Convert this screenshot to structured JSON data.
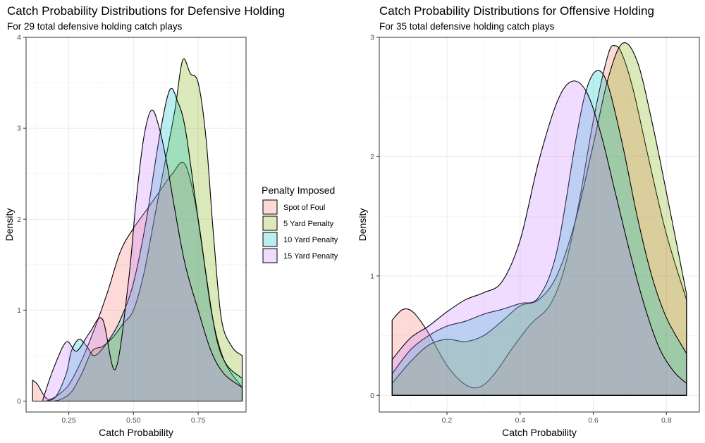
{
  "legend": {
    "title": "Penalty Imposed",
    "placement": "between-panels",
    "items": [
      {
        "label": "Spot of Foul",
        "color": "#F8766D"
      },
      {
        "label": "5 Yard Penalty",
        "color": "#7CAE00"
      },
      {
        "label": "10 Yard Penalty",
        "color": "#00BFC4"
      },
      {
        "label": "15 Yard Penalty",
        "color": "#C77CFF"
      }
    ]
  },
  "chart_data": [
    {
      "type": "area",
      "title": "Catch Probability Distributions for Defensive Holding",
      "subtitle": "For 29 total defensive holding catch plays",
      "xlabel": "Catch Probability",
      "ylabel": "Density",
      "xlim": [
        0.085,
        0.935
      ],
      "ylim": [
        -0.12,
        4.0
      ],
      "xticks": [
        0.25,
        0.5,
        0.75
      ],
      "xtick_labels": [
        "0.25",
        "0.50",
        "0.75"
      ],
      "yticks": [
        0,
        1,
        2,
        3,
        4
      ],
      "ytick_labels": [
        "0",
        "1",
        "2",
        "3",
        "4"
      ],
      "grid": true,
      "series": [
        {
          "name": "Spot of Foul",
          "color": "#F8766D",
          "x": [
            0.11,
            0.13,
            0.15,
            0.17,
            0.2,
            0.25,
            0.3,
            0.35,
            0.4,
            0.45,
            0.5,
            0.55,
            0.6,
            0.65,
            0.7,
            0.75,
            0.8,
            0.85,
            0.92
          ],
          "y": [
            0.23,
            0.18,
            0.08,
            0.02,
            0.05,
            0.18,
            0.45,
            0.8,
            1.2,
            1.65,
            1.9,
            2.1,
            2.3,
            2.5,
            2.6,
            2.0,
            1.0,
            0.45,
            0.15
          ]
        },
        {
          "name": "5 Yard Penalty",
          "color": "#7CAE00",
          "x": [
            0.19,
            0.22,
            0.26,
            0.3,
            0.34,
            0.38,
            0.42,
            0.46,
            0.5,
            0.54,
            0.58,
            0.62,
            0.66,
            0.69,
            0.72,
            0.75,
            0.78,
            0.81,
            0.84,
            0.88,
            0.92
          ],
          "y": [
            0.0,
            0.02,
            0.1,
            0.3,
            0.55,
            0.6,
            0.7,
            0.85,
            1.0,
            1.4,
            2.0,
            2.6,
            3.2,
            3.75,
            3.6,
            3.5,
            2.9,
            1.8,
            0.9,
            0.6,
            0.5
          ]
        },
        {
          "name": "10 Yard Penalty",
          "color": "#00BFC4",
          "x": [
            0.16,
            0.2,
            0.24,
            0.26,
            0.29,
            0.32,
            0.35,
            0.4,
            0.45,
            0.5,
            0.55,
            0.6,
            0.64,
            0.67,
            0.7,
            0.74,
            0.78,
            0.82,
            0.86,
            0.92
          ],
          "y": [
            0.0,
            0.05,
            0.3,
            0.55,
            0.68,
            0.6,
            0.5,
            0.65,
            0.9,
            1.3,
            2.0,
            2.9,
            3.42,
            3.3,
            3.0,
            2.2,
            1.4,
            0.7,
            0.4,
            0.25
          ]
        },
        {
          "name": "15 Yard Penalty",
          "color": "#C77CFF",
          "x": [
            0.15,
            0.19,
            0.24,
            0.28,
            0.33,
            0.38,
            0.43,
            0.48,
            0.51,
            0.54,
            0.57,
            0.6,
            0.63,
            0.66,
            0.7,
            0.75,
            0.8,
            0.85,
            0.92
          ],
          "y": [
            0.02,
            0.35,
            0.65,
            0.55,
            0.75,
            0.9,
            0.35,
            1.3,
            2.2,
            2.9,
            3.2,
            3.0,
            2.6,
            2.1,
            1.5,
            1.0,
            0.55,
            0.3,
            0.15
          ]
        }
      ]
    },
    {
      "type": "area",
      "title": "Catch Probability Distributions for Offensive Holding",
      "subtitle": "For 35 total defensive holding catch plays",
      "xlabel": "Catch Probability",
      "ylabel": "Density",
      "xlim": [
        0.015,
        0.89
      ],
      "ylim": [
        -0.14,
        3.0
      ],
      "xticks": [
        0.2,
        0.4,
        0.6,
        0.8
      ],
      "xtick_labels": [
        "0.2",
        "0.4",
        "0.6",
        "0.8"
      ],
      "yticks": [
        0,
        1,
        2,
        3
      ],
      "ytick_labels": [
        "0",
        "1",
        "2",
        "3"
      ],
      "grid": true,
      "series": [
        {
          "name": "Spot of Foul",
          "color": "#F8766D",
          "x": [
            0.05,
            0.08,
            0.11,
            0.15,
            0.2,
            0.25,
            0.29,
            0.33,
            0.38,
            0.43,
            0.48,
            0.52,
            0.56,
            0.6,
            0.64,
            0.66,
            0.68,
            0.71,
            0.75,
            0.8,
            0.855
          ],
          "y": [
            0.63,
            0.72,
            0.69,
            0.52,
            0.25,
            0.09,
            0.07,
            0.18,
            0.4,
            0.6,
            0.75,
            1.05,
            1.6,
            2.3,
            2.85,
            2.93,
            2.85,
            2.55,
            2.0,
            1.35,
            0.8
          ]
        },
        {
          "name": "5 Yard Penalty",
          "color": "#7CAE00",
          "x": [
            0.05,
            0.1,
            0.15,
            0.2,
            0.25,
            0.3,
            0.35,
            0.4,
            0.45,
            0.5,
            0.55,
            0.6,
            0.64,
            0.68,
            0.72,
            0.76,
            0.8,
            0.855
          ],
          "y": [
            0.1,
            0.28,
            0.42,
            0.47,
            0.45,
            0.5,
            0.62,
            0.75,
            0.8,
            1.0,
            1.45,
            2.1,
            2.65,
            2.95,
            2.8,
            2.3,
            1.7,
            0.85
          ]
        },
        {
          "name": "10 Yard Penalty",
          "color": "#00BFC4",
          "x": [
            0.05,
            0.1,
            0.15,
            0.2,
            0.25,
            0.3,
            0.35,
            0.4,
            0.45,
            0.5,
            0.55,
            0.58,
            0.61,
            0.64,
            0.68,
            0.72,
            0.76,
            0.8,
            0.855
          ],
          "y": [
            0.18,
            0.38,
            0.5,
            0.58,
            0.62,
            0.68,
            0.72,
            0.77,
            0.82,
            1.2,
            2.1,
            2.55,
            2.72,
            2.6,
            2.1,
            1.5,
            1.0,
            0.65,
            0.35
          ]
        },
        {
          "name": "15 Yard Penalty",
          "color": "#C77CFF",
          "x": [
            0.05,
            0.1,
            0.15,
            0.2,
            0.25,
            0.3,
            0.35,
            0.4,
            0.45,
            0.5,
            0.54,
            0.58,
            0.62,
            0.66,
            0.7,
            0.74,
            0.78,
            0.82,
            0.855
          ],
          "y": [
            0.3,
            0.48,
            0.58,
            0.7,
            0.8,
            0.86,
            0.95,
            1.3,
            1.95,
            2.45,
            2.63,
            2.55,
            2.2,
            1.7,
            1.2,
            0.75,
            0.4,
            0.2,
            0.1
          ]
        }
      ]
    }
  ]
}
